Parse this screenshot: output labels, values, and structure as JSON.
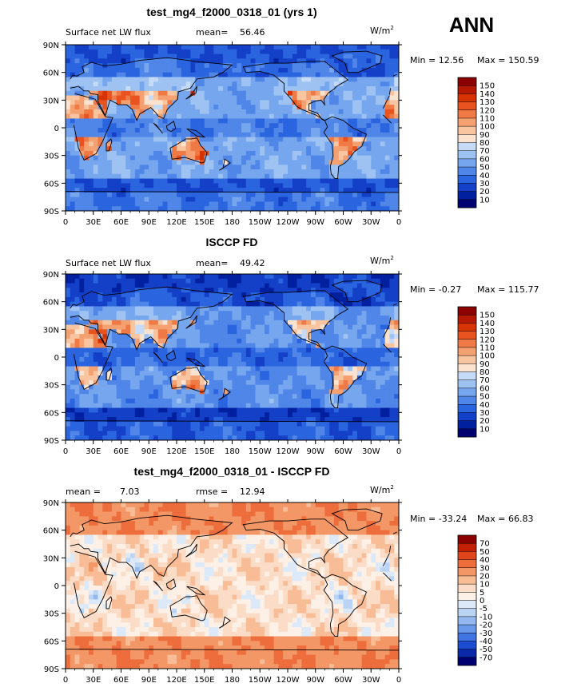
{
  "season": "ANN",
  "chart_data": [
    {
      "type": "heatmap",
      "title": "test_mg4_f2000_0318_01 (yrs 1)",
      "field_label": "Surface net LW flux",
      "stat1_label": "mean=",
      "stat1_value": "56.46",
      "units": "W/m",
      "units_sup": "2",
      "min_text": "Min =  12.56",
      "max_text": "Max = 150.59",
      "min": 12.56,
      "max": 150.59,
      "mean": 56.46,
      "colorbar_levels": [
        "150",
        "140",
        "130",
        "120",
        "110",
        "100",
        "90",
        "80",
        "70",
        "60",
        "50",
        "40",
        "30",
        "20",
        "10"
      ],
      "colorbar_colors": [
        "#8b0000",
        "#b51a00",
        "#d63300",
        "#e8531f",
        "#f07a45",
        "#f5a070",
        "#f8c5a0",
        "#fbe3cf",
        "#c6dbf7",
        "#9ec3f3",
        "#76a6ee",
        "#4f86e8",
        "#2a64df",
        "#1440c8",
        "#0020a0",
        "#000070"
      ],
      "xticks": [
        "0",
        "30E",
        "60E",
        "90E",
        "120E",
        "150E",
        "180",
        "150W",
        "120W",
        "90W",
        "60W",
        "30W",
        "0"
      ],
      "yticks": [
        "90N",
        "60N",
        "30N",
        "0",
        "30S",
        "60S",
        "90S"
      ]
    },
    {
      "type": "heatmap",
      "title": "ISCCP FD",
      "field_label": "Surface net LW flux",
      "stat1_label": "mean=",
      "stat1_value": "49.42",
      "units": "W/m",
      "units_sup": "2",
      "min_text": "Min =  -0.27",
      "max_text": "Max = 115.77",
      "min": -0.27,
      "max": 115.77,
      "mean": 49.42,
      "colorbar_levels": [
        "150",
        "140",
        "130",
        "120",
        "110",
        "100",
        "90",
        "80",
        "70",
        "60",
        "50",
        "40",
        "30",
        "20",
        "10"
      ],
      "colorbar_colors": [
        "#8b0000",
        "#b51a00",
        "#d63300",
        "#e8531f",
        "#f07a45",
        "#f5a070",
        "#f8c5a0",
        "#fbe3cf",
        "#c6dbf7",
        "#9ec3f3",
        "#76a6ee",
        "#4f86e8",
        "#2a64df",
        "#1440c8",
        "#0020a0",
        "#000070"
      ],
      "xticks": [
        "0",
        "30E",
        "60E",
        "90E",
        "120E",
        "150E",
        "180",
        "150W",
        "120W",
        "90W",
        "60W",
        "30W",
        "0"
      ],
      "yticks": [
        "90N",
        "60N",
        "30N",
        "0",
        "30S",
        "60S",
        "90S"
      ]
    },
    {
      "type": "heatmap",
      "title": "test_mg4_f2000_0318_01 - ISCCP FD",
      "field_label": "mean =",
      "stat1_label": "",
      "stat1_value": "7.03",
      "stat2_label": "rmse =",
      "stat2_value": "12.94",
      "units": "W/m",
      "units_sup": "2",
      "min_text": "Min = -33.24",
      "max_text": "Max =  66.83",
      "min": -33.24,
      "max": 66.83,
      "mean": 7.03,
      "rmse": 12.94,
      "colorbar_levels": [
        "70",
        "50",
        "40",
        "30",
        "20",
        "10",
        "5",
        "0",
        "-5",
        "-10",
        "-20",
        "-30",
        "-40",
        "-50",
        "-70"
      ],
      "colorbar_colors": [
        "#8b0000",
        "#c22000",
        "#e0461a",
        "#ee6d3c",
        "#f49766",
        "#f8bd97",
        "#fbdcc6",
        "#fdf0e6",
        "#dce9f8",
        "#bcd4f4",
        "#93b8ef",
        "#6a98ea",
        "#3f74e2",
        "#1c4dd0",
        "#0a28a8",
        "#000070"
      ],
      "xticks": [
        "0",
        "30E",
        "60E",
        "90E",
        "120E",
        "150E",
        "180",
        "150W",
        "120W",
        "90W",
        "60W",
        "30W",
        "0"
      ],
      "yticks": [
        "90N",
        "60N",
        "30N",
        "0",
        "30S",
        "60S",
        "90S"
      ]
    }
  ]
}
